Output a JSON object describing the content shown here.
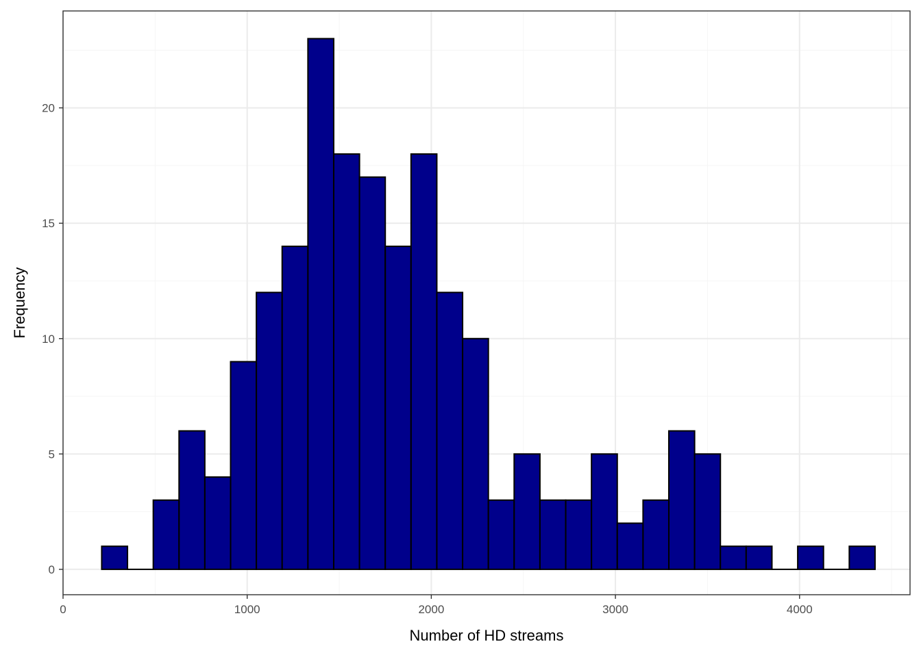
{
  "chart_data": {
    "type": "bar",
    "subtype": "histogram",
    "title": "",
    "xlabel": "Number of HD streams",
    "ylabel": "Frequency",
    "xlim": [
      0,
      4600
    ],
    "ylim": [
      -1.1,
      24.2
    ],
    "x_ticks": [
      0,
      1000,
      2000,
      3000,
      4000
    ],
    "y_ticks": [
      0,
      5,
      10,
      15,
      20
    ],
    "grid": true,
    "bin_width": 140,
    "bins": [
      {
        "x0": 210,
        "x1": 350,
        "count": 1
      },
      {
        "x0": 350,
        "x1": 490,
        "count": 0
      },
      {
        "x0": 490,
        "x1": 630,
        "count": 3
      },
      {
        "x0": 630,
        "x1": 770,
        "count": 6
      },
      {
        "x0": 770,
        "x1": 910,
        "count": 4
      },
      {
        "x0": 910,
        "x1": 1050,
        "count": 9
      },
      {
        "x0": 1050,
        "x1": 1190,
        "count": 12
      },
      {
        "x0": 1190,
        "x1": 1330,
        "count": 14
      },
      {
        "x0": 1330,
        "x1": 1470,
        "count": 23
      },
      {
        "x0": 1470,
        "x1": 1610,
        "count": 18
      },
      {
        "x0": 1610,
        "x1": 1750,
        "count": 17
      },
      {
        "x0": 1750,
        "x1": 1890,
        "count": 14
      },
      {
        "x0": 1890,
        "x1": 2030,
        "count": 18
      },
      {
        "x0": 2030,
        "x1": 2170,
        "count": 12
      },
      {
        "x0": 2170,
        "x1": 2310,
        "count": 10
      },
      {
        "x0": 2310,
        "x1": 2450,
        "count": 3
      },
      {
        "x0": 2450,
        "x1": 2590,
        "count": 5
      },
      {
        "x0": 2590,
        "x1": 2730,
        "count": 3
      },
      {
        "x0": 2730,
        "x1": 2870,
        "count": 3
      },
      {
        "x0": 2870,
        "x1": 3010,
        "count": 5
      },
      {
        "x0": 3010,
        "x1": 3150,
        "count": 2
      },
      {
        "x0": 3150,
        "x1": 3290,
        "count": 3
      },
      {
        "x0": 3290,
        "x1": 3430,
        "count": 6
      },
      {
        "x0": 3430,
        "x1": 3570,
        "count": 5
      },
      {
        "x0": 3570,
        "x1": 3710,
        "count": 1
      },
      {
        "x0": 3710,
        "x1": 3850,
        "count": 1
      },
      {
        "x0": 3850,
        "x1": 3990,
        "count": 0
      },
      {
        "x0": 3990,
        "x1": 4130,
        "count": 1
      },
      {
        "x0": 4130,
        "x1": 4270,
        "count": 0
      },
      {
        "x0": 4270,
        "x1": 4410,
        "count": 1
      }
    ],
    "colors": {
      "bar_fill": "#00008B",
      "bar_stroke": "#000000",
      "grid_major": "#EBEBEB",
      "grid_minor": "#F5F5F5",
      "panel_border": "#333333"
    }
  }
}
